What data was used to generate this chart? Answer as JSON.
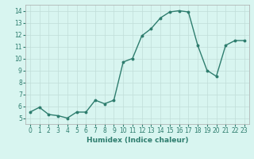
{
  "x": [
    0,
    1,
    2,
    3,
    4,
    5,
    6,
    7,
    8,
    9,
    10,
    11,
    12,
    13,
    14,
    15,
    16,
    17,
    18,
    19,
    20,
    21,
    22,
    23
  ],
  "y": [
    5.5,
    5.9,
    5.3,
    5.2,
    5.0,
    5.5,
    5.5,
    6.5,
    6.2,
    6.5,
    9.7,
    10.0,
    11.9,
    12.5,
    13.4,
    13.9,
    14.0,
    13.9,
    11.1,
    9.0,
    8.5,
    11.1,
    11.5,
    11.5
  ],
  "line_color": "#2e7d6e",
  "marker": "o",
  "markersize": 1.8,
  "linewidth": 1.0,
  "xlabel": "Humidex (Indice chaleur)",
  "xlabel_fontsize": 6.5,
  "background_color": "#d8f5f0",
  "grid_color": "#c0ddd8",
  "grid_color_minor": "#e0eeeb",
  "tick_fontsize": 5.5,
  "xlim": [
    -0.5,
    23.5
  ],
  "ylim": [
    4.5,
    14.5
  ],
  "yticks": [
    5,
    6,
    7,
    8,
    9,
    10,
    11,
    12,
    13,
    14
  ],
  "xticks": [
    0,
    1,
    2,
    3,
    4,
    5,
    6,
    7,
    8,
    9,
    10,
    11,
    12,
    13,
    14,
    15,
    16,
    17,
    18,
    19,
    20,
    21,
    22,
    23
  ]
}
